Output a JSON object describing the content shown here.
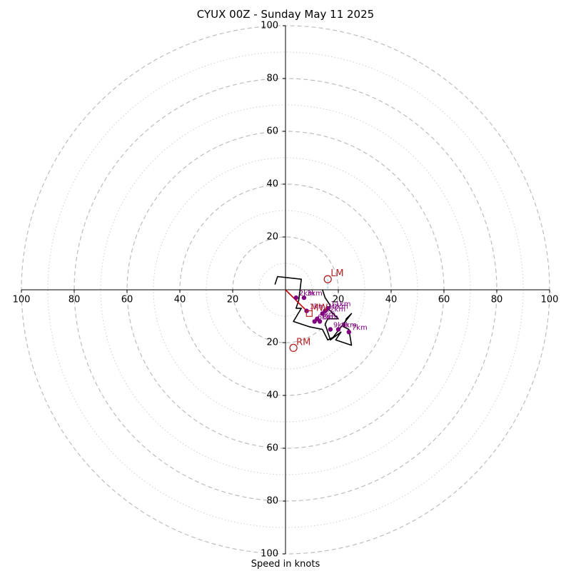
{
  "chart_data": {
    "type": "hodograph",
    "title": "CYUX 00Z - Sunday May 11 2025",
    "xlabel": "Speed in knots",
    "range": [
      0,
      100
    ],
    "ring_major": [
      20,
      40,
      60,
      80,
      100
    ],
    "ring_minor": [
      10,
      30,
      50,
      70,
      90
    ],
    "tick_labels": {
      "left": [
        "100",
        "80",
        "60",
        "40",
        "20"
      ],
      "right": [
        "20",
        "40",
        "60",
        "80",
        "100"
      ],
      "top": [
        "100",
        "80",
        "60",
        "40",
        "20"
      ],
      "bottom": [
        "20",
        "40",
        "60",
        "80",
        "100"
      ]
    },
    "hodograph": {
      "color": "#000000",
      "u": [
        -4,
        -3,
        6,
        5,
        4,
        6,
        3,
        9,
        14,
        16,
        18,
        25,
        23,
        22,
        24,
        25,
        19,
        21,
        17,
        15,
        16,
        20,
        16,
        17,
        15,
        14
      ],
      "v": [
        2,
        5,
        4,
        -4,
        -7,
        -7,
        -12,
        -14,
        -15,
        -19,
        -18,
        -9,
        -11,
        -14,
        -15,
        -21,
        -19,
        -16,
        -19,
        -13,
        -11,
        -11,
        -7,
        -6,
        -3,
        0
      ]
    },
    "levels": [
      {
        "label": "1km",
        "u": 8,
        "v": -8
      },
      {
        "label": "2km",
        "u": 4,
        "v": -3
      },
      {
        "label": "3km",
        "u": 7,
        "v": -3
      },
      {
        "label": "4km",
        "u": 12,
        "v": -11
      },
      {
        "label": "5km",
        "u": 13,
        "v": -12
      },
      {
        "label": "6km",
        "u": 11,
        "v": -12
      },
      {
        "label": "7km",
        "u": 24,
        "v": -16
      },
      {
        "label": "8km",
        "u": 20,
        "v": -15
      },
      {
        "label": "9km",
        "u": 17,
        "v": -15
      },
      {
        "label": "10km",
        "u": 15,
        "v": -8
      },
      {
        "label": "11km",
        "u": 16,
        "v": -7
      },
      {
        "label": "12km",
        "u": 14,
        "v": -9
      }
    ],
    "level_color": "#800080",
    "shear_segment": {
      "color": "#cc0000",
      "u": [
        0,
        4,
        8
      ],
      "v": [
        0,
        -4,
        -8
      ]
    },
    "storm_motions": [
      {
        "label": "LM",
        "u": 16,
        "v": 4
      },
      {
        "label": "RM",
        "u": 3,
        "v": -22
      }
    ],
    "mean_wind": {
      "label": "MW",
      "u": 9,
      "v": -9
    },
    "motion_color": "#b22222",
    "lm_vector_color": "#87ceeb"
  }
}
